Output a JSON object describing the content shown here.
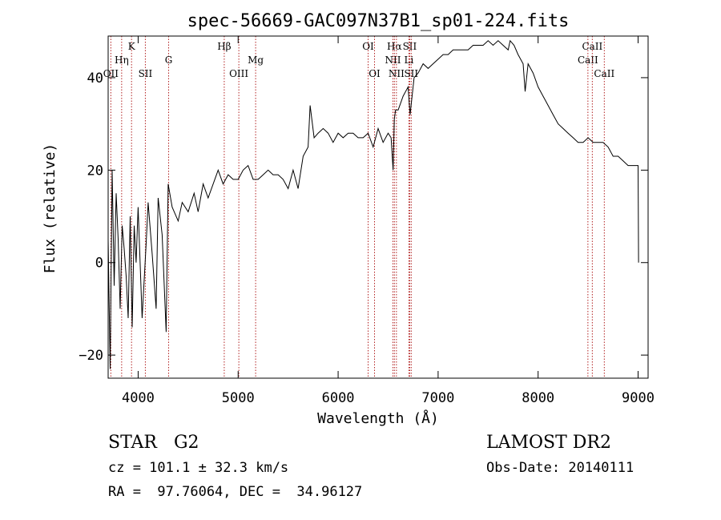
{
  "chart_data": {
    "type": "line",
    "title": "spec-56669-GAC097N37B1_sp01-224.fits",
    "xlabel": "Wavelength (Å)",
    "ylabel": "Flux (relative)",
    "xlim": [
      3700,
      9100
    ],
    "ylim": [
      -25,
      49
    ],
    "x_ticks": [
      4000,
      5000,
      6000,
      7000,
      8000,
      9000
    ],
    "y_ticks": [
      -20,
      0,
      20,
      40
    ],
    "grid": false,
    "line_color": "#000000",
    "marker_color": "#b22222",
    "series": [
      {
        "x": [
          3700,
          3720,
          3740,
          3760,
          3780,
          3800,
          3820,
          3840,
          3860,
          3880,
          3900,
          3920,
          3940,
          3960,
          3980,
          4000,
          4040,
          4080,
          4100,
          4140,
          4180,
          4200,
          4240,
          4280,
          4300,
          4340,
          4400,
          4440,
          4500,
          4560,
          4600,
          4650,
          4700,
          4750,
          4800,
          4850,
          4900,
          4950,
          5000,
          5050,
          5100,
          5150,
          5200,
          5250,
          5300,
          5350,
          5400,
          5450,
          5500,
          5550,
          5600,
          5650,
          5700,
          5720,
          5760,
          5800,
          5850,
          5900,
          5950,
          6000,
          6050,
          6100,
          6150,
          6200,
          6250,
          6300,
          6350,
          6400,
          6450,
          6500,
          6530,
          6550,
          6562,
          6575,
          6600,
          6650,
          6700,
          6720,
          6760,
          6800,
          6850,
          6900,
          6950,
          7000,
          7050,
          7100,
          7150,
          7200,
          7250,
          7300,
          7350,
          7400,
          7450,
          7500,
          7550,
          7600,
          7650,
          7700,
          7720,
          7760,
          7800,
          7850,
          7870,
          7900,
          7950,
          8000,
          8050,
          8100,
          8150,
          8200,
          8250,
          8300,
          8350,
          8400,
          8450,
          8500,
          8550,
          8600,
          8650,
          8700,
          8750,
          8800,
          8850,
          8900,
          8950,
          8980,
          9000,
          9005
        ],
        "y": [
          5,
          -23,
          20,
          -5,
          15,
          5,
          -10,
          8,
          3,
          -3,
          -12,
          10,
          -14,
          8,
          0,
          12,
          -12,
          4,
          13,
          2,
          -10,
          14,
          6,
          -15,
          17,
          12,
          9,
          13,
          11,
          15,
          11,
          17,
          14,
          17,
          20,
          17,
          19,
          18,
          18,
          20,
          21,
          18,
          18,
          19,
          20,
          19,
          19,
          18,
          16,
          20,
          16,
          23,
          25,
          34,
          27,
          28,
          29,
          28,
          26,
          28,
          27,
          28,
          28,
          27,
          27,
          28,
          25,
          29,
          26,
          28,
          27,
          20,
          31,
          33,
          33,
          36,
          38,
          32,
          40,
          41,
          43,
          42,
          43,
          44,
          45,
          45,
          46,
          46,
          46,
          46,
          47,
          47,
          47,
          48,
          47,
          48,
          47,
          46,
          48,
          47,
          45,
          43,
          37,
          43,
          41,
          38,
          36,
          34,
          32,
          30,
          29,
          28,
          27,
          26,
          26,
          27,
          26,
          26,
          26,
          25,
          23,
          23,
          22,
          21,
          21,
          21,
          21,
          0
        ]
      }
    ],
    "spectral_lines": [
      {
        "label": "OII",
        "wavelength": 3727,
        "row": 3
      },
      {
        "label": "Hη",
        "wavelength": 3835,
        "row": 2
      },
      {
        "label": "K",
        "wavelength": 3934,
        "row": 1
      },
      {
        "label": "SII",
        "wavelength": 4072,
        "row": 3
      },
      {
        "label": "G",
        "wavelength": 4305,
        "row": 2
      },
      {
        "label": "Hβ",
        "wavelength": 4861,
        "row": 1
      },
      {
        "label": "OIII",
        "wavelength": 5007,
        "row": 3
      },
      {
        "label": "Mg",
        "wavelength": 5175,
        "row": 2
      },
      {
        "label": "OI",
        "wavelength": 6300,
        "row": 1
      },
      {
        "label": "OI",
        "wavelength": 6364,
        "row": 3
      },
      {
        "label": "NII",
        "wavelength": 6548,
        "row": 2
      },
      {
        "label": "Hα",
        "wavelength": 6563,
        "row": 1
      },
      {
        "label": "NII",
        "wavelength": 6583,
        "row": 3
      },
      {
        "label": "Li",
        "wavelength": 6708,
        "row": 2
      },
      {
        "label": "SII",
        "wavelength": 6716,
        "row": 1
      },
      {
        "label": "SII",
        "wavelength": 6731,
        "row": 3
      },
      {
        "label": "CaII",
        "wavelength": 8498,
        "row": 2
      },
      {
        "label": "CaII",
        "wavelength": 8542,
        "row": 1
      },
      {
        "label": "CaII",
        "wavelength": 8662,
        "row": 3
      }
    ]
  },
  "info": {
    "class_line": "STAR   G2",
    "survey": "LAMOST DR2",
    "cz_line": "cz = 101.1 ± 32.3 km/s",
    "obs_date_line": "Obs-Date: 20140111",
    "coords_line": "RA =  97.76064, DEC =  34.96127"
  }
}
